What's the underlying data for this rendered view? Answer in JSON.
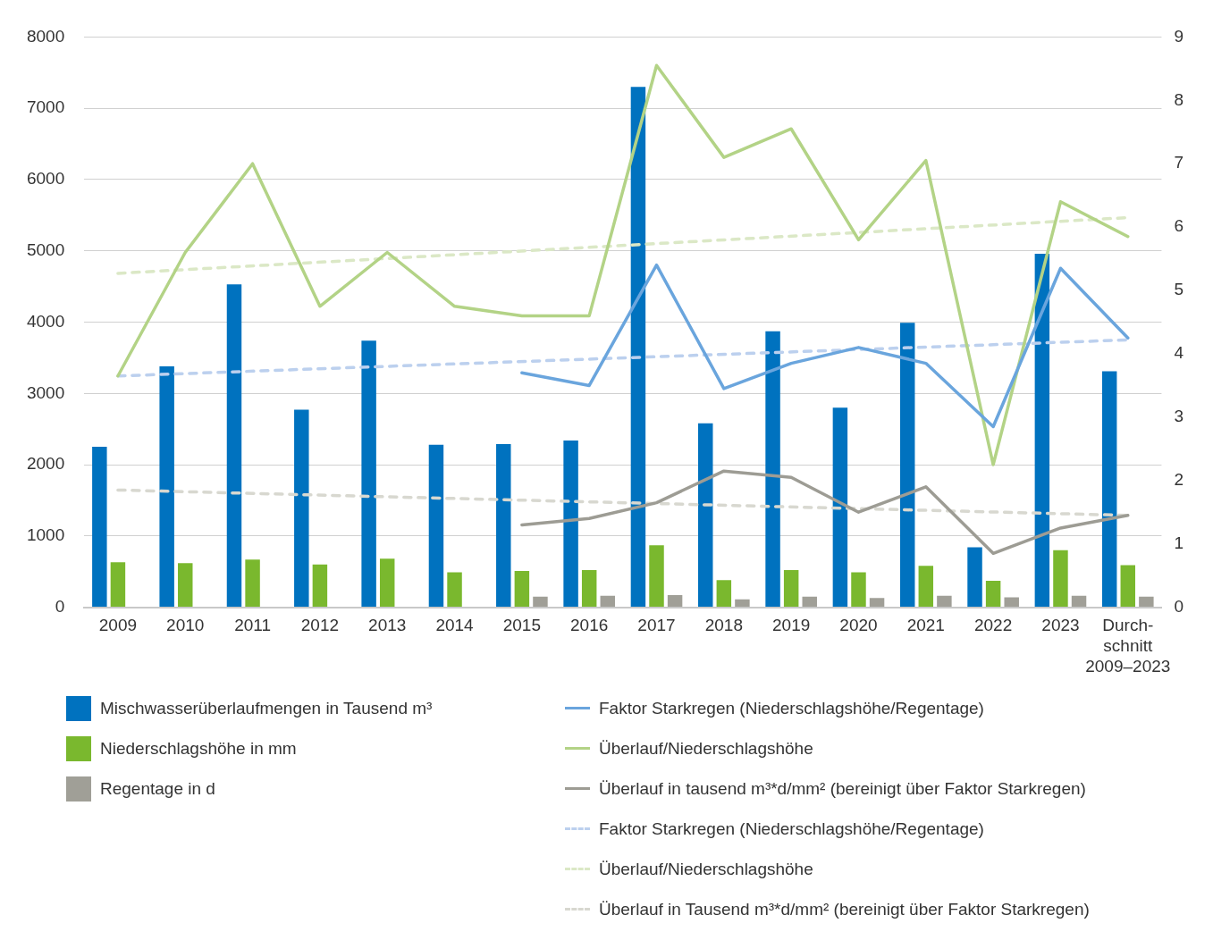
{
  "chart_data": {
    "type": "bar",
    "categories": [
      "2009",
      "2010",
      "2011",
      "2012",
      "2013",
      "2014",
      "2015",
      "2016",
      "2017",
      "2018",
      "2019",
      "2020",
      "2021",
      "2022",
      "2023",
      "Durch-\nschnitt\n2009–2023"
    ],
    "series": [
      {
        "name": "Mischwasserüberlaufmengen in Tausend m³",
        "color": "#0072bf",
        "values": [
          2250,
          3380,
          4530,
          2770,
          3740,
          2280,
          2290,
          2340,
          7300,
          2580,
          3870,
          2800,
          3990,
          840,
          4960,
          3310
        ]
      },
      {
        "name": "Niederschlagshöhe in mm",
        "color": "#7ab82e",
        "values": [
          630,
          620,
          670,
          600,
          680,
          490,
          510,
          520,
          870,
          380,
          520,
          490,
          580,
          370,
          800,
          590
        ]
      },
      {
        "name": "Regentage in d",
        "color": "#a09f97",
        "values": [
          null,
          null,
          null,
          null,
          null,
          null,
          150,
          160,
          170,
          110,
          150,
          130,
          160,
          140,
          160,
          150
        ]
      },
      {
        "name": "Faktor Starkregen (Niederschlagshöhe/Regentage)",
        "type": "line",
        "axis": "y2",
        "line_style": "solid",
        "color": "#6aa5dd",
        "values": [
          null,
          null,
          null,
          null,
          null,
          null,
          3.7,
          3.5,
          5.4,
          3.45,
          3.85,
          4.1,
          3.85,
          2.85,
          5.35,
          4.25
        ]
      },
      {
        "name": "Überlauf/Niederschlagshöhe",
        "type": "line",
        "axis": "y2",
        "line_style": "solid",
        "color": "#b3d386",
        "values": [
          3.65,
          5.6,
          7.0,
          4.75,
          5.6,
          4.75,
          4.6,
          4.6,
          8.55,
          7.1,
          7.55,
          5.8,
          7.05,
          2.25,
          6.4,
          5.85
        ]
      },
      {
        "name": "Überlauf in tausend m³*d/mm² (bereinigt über Faktor Starkregen)",
        "type": "line",
        "axis": "y2",
        "line_style": "solid",
        "color": "#9d9c94",
        "values": [
          null,
          null,
          null,
          null,
          null,
          null,
          1.3,
          1.4,
          1.65,
          2.15,
          2.05,
          1.5,
          1.9,
          0.85,
          1.25,
          1.45
        ]
      },
      {
        "name": "Faktor Starkregen (Niederschlagshöhe/Regentage)",
        "type": "line",
        "axis": "y2",
        "line_style": "dashed",
        "color": "#bcd0ee",
        "values": [
          3.65,
          null,
          null,
          null,
          null,
          null,
          null,
          null,
          null,
          null,
          null,
          null,
          null,
          null,
          null,
          4.22
        ]
      },
      {
        "name": "Überlauf/Niederschlagshöhe",
        "type": "line",
        "axis": "y2",
        "line_style": "dashed",
        "color": "#dbe8c6",
        "values": [
          5.27,
          null,
          null,
          null,
          null,
          null,
          null,
          null,
          null,
          null,
          null,
          null,
          null,
          null,
          null,
          6.15
        ]
      },
      {
        "name": "Überlauf in Tausend m³*d/mm² (bereinigt über Faktor Starkregen)",
        "type": "line",
        "axis": "y2",
        "line_style": "dashed",
        "color": "#d8d8d0",
        "values": [
          1.85,
          null,
          null,
          null,
          null,
          null,
          null,
          null,
          null,
          null,
          null,
          null,
          null,
          null,
          null,
          1.45
        ]
      }
    ],
    "ylim": [
      0,
      8000
    ],
    "yticks": [
      0,
      1000,
      2000,
      3000,
      4000,
      5000,
      6000,
      7000,
      8000
    ],
    "y2lim": [
      0,
      9
    ],
    "y2ticks": [
      0,
      1,
      2,
      3,
      4,
      5,
      6,
      7,
      8,
      9
    ],
    "grid": "y",
    "legend": "bottom"
  }
}
